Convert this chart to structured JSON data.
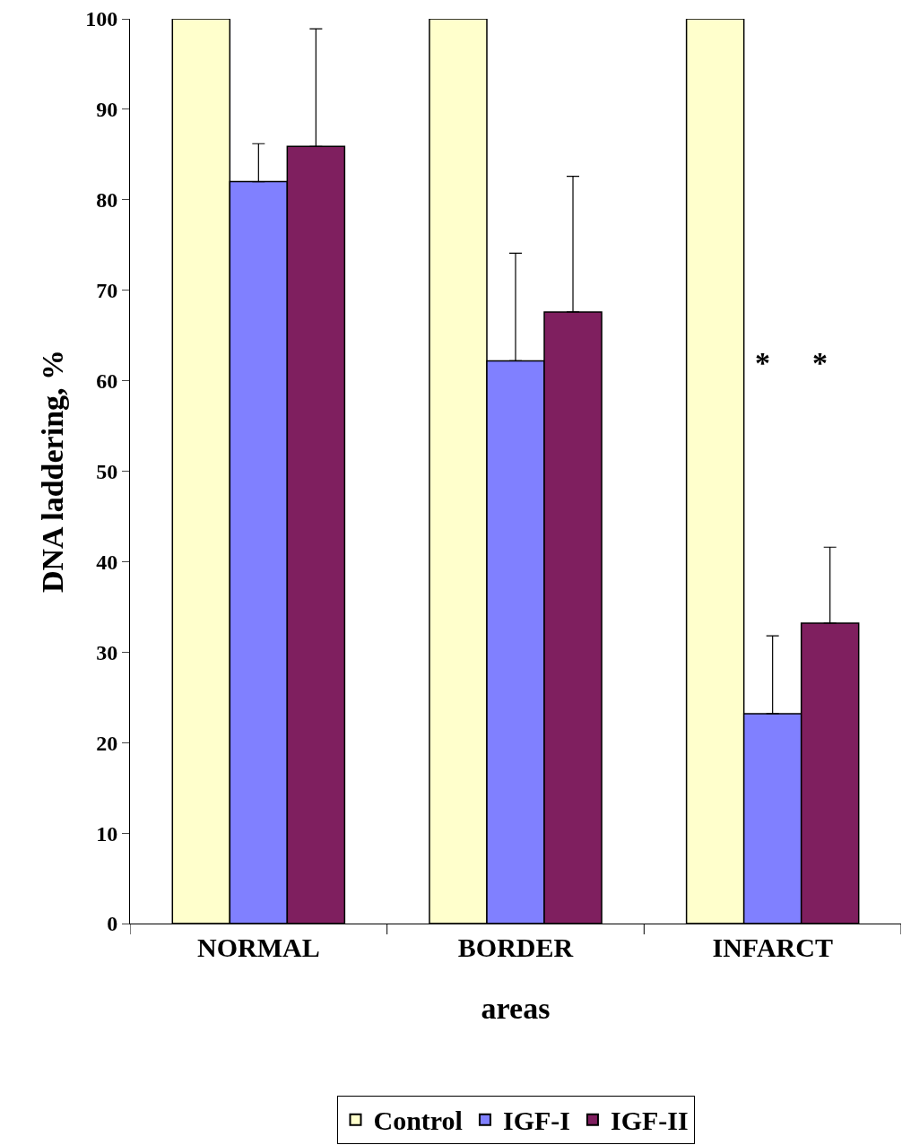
{
  "chart_data": {
    "type": "bar",
    "xlabel": "areas",
    "ylabel": "DNA laddering, %",
    "categories": [
      "NORMAL",
      "BORDER",
      "INFARCT"
    ],
    "series": [
      {
        "name": "Control",
        "color": "#ffffcc",
        "values": [
          100,
          100,
          100
        ]
      },
      {
        "name": "IGF-I",
        "color": "#8080ff",
        "values": [
          82,
          62.2,
          23.2
        ],
        "errors": [
          [
            82,
            86.2
          ],
          [
            62.2,
            74.1
          ],
          [
            23.2,
            31.8
          ]
        ]
      },
      {
        "name": "IGF-II",
        "color": "#7f1f5f",
        "values": [
          85.9,
          67.6,
          33.2
        ],
        "errors": [
          [
            85.9,
            98.9
          ],
          [
            67.6,
            82.6
          ],
          [
            33.2,
            41.6
          ]
        ]
      }
    ],
    "annotations": [
      "*",
      "*"
    ],
    "ylim": [
      0,
      100
    ],
    "yticks": [
      0,
      10,
      20,
      30,
      40,
      50,
      60,
      70,
      80,
      90,
      100
    ],
    "legend": "bottom"
  }
}
